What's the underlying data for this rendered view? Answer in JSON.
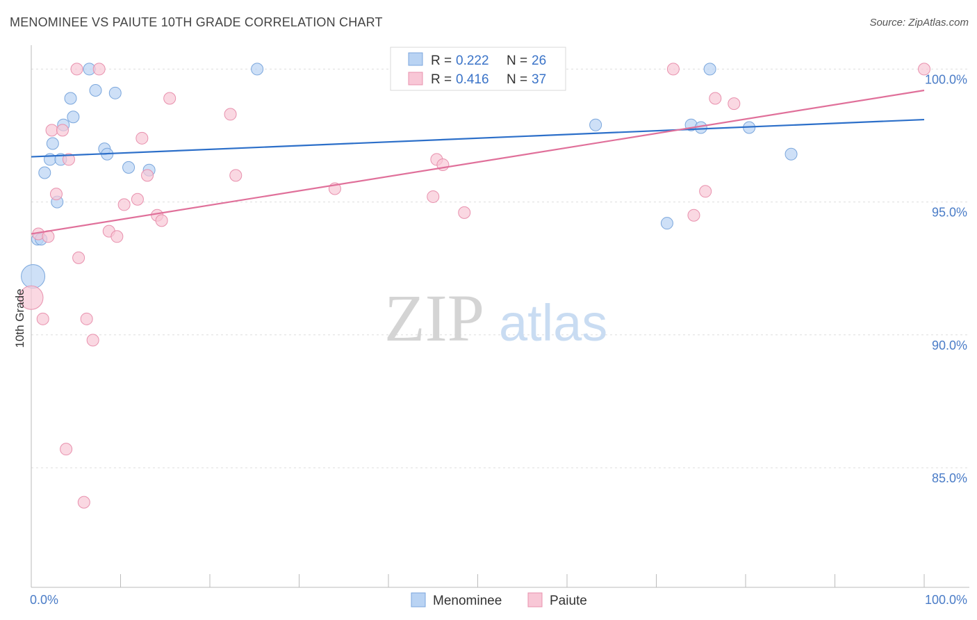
{
  "title": "MENOMINEE VS PAIUTE 10TH GRADE CORRELATION CHART",
  "source": "Source: ZipAtlas.com",
  "watermark": {
    "zip": "ZIP",
    "atlas": "atlas"
  },
  "colors": {
    "menominee_fill": "#b9d3f3",
    "menominee_stroke": "#7aa6dc",
    "menominee_line": "#2c6fc9",
    "paiute_fill": "#f8c7d6",
    "paiute_stroke": "#e890ad",
    "paiute_line": "#e0709a",
    "tick_label": "#4a7cc7",
    "grid": "#dddddd"
  },
  "legend": {
    "rows": [
      {
        "r_label": "R =",
        "r_value": "0.222",
        "n_label": "N =",
        "n_value": "26"
      },
      {
        "r_label": "R =",
        "r_value": "0.416",
        "n_label": "N =",
        "n_value": "37"
      }
    ]
  },
  "chart_data": {
    "type": "scatter",
    "title": "MENOMINEE VS PAIUTE 10TH GRADE CORRELATION CHART",
    "xlabel": "",
    "ylabel": "10th Grade",
    "xlim": [
      0,
      100
    ],
    "ylim": [
      80.5,
      100.9
    ],
    "x_tick_labels": [
      "0.0%",
      "100.0%"
    ],
    "y_ticks": [
      85,
      90,
      95,
      100
    ],
    "y_tick_labels": [
      "85.0%",
      "90.0%",
      "95.0%",
      "100.0%"
    ],
    "grid": true,
    "legend_placement": "top-center and bottom",
    "series": [
      {
        "name": "Menominee",
        "trend": {
          "x": [
            0,
            100
          ],
          "y": [
            96.7,
            98.1
          ]
        },
        "points": [
          {
            "x": 0.2,
            "y": 92.2,
            "s": 2
          },
          {
            "x": 0.7,
            "y": 93.6,
            "s": 1
          },
          {
            "x": 1.1,
            "y": 93.6,
            "s": 1
          },
          {
            "x": 1.5,
            "y": 96.1,
            "s": 1
          },
          {
            "x": 2.1,
            "y": 96.6,
            "s": 1
          },
          {
            "x": 2.4,
            "y": 97.2,
            "s": 1
          },
          {
            "x": 2.9,
            "y": 95.0,
            "s": 1
          },
          {
            "x": 3.3,
            "y": 96.6,
            "s": 1
          },
          {
            "x": 3.6,
            "y": 97.9,
            "s": 1
          },
          {
            "x": 4.4,
            "y": 98.9,
            "s": 1
          },
          {
            "x": 4.7,
            "y": 98.2,
            "s": 1
          },
          {
            "x": 6.5,
            "y": 100.0,
            "s": 1
          },
          {
            "x": 7.2,
            "y": 99.2,
            "s": 1
          },
          {
            "x": 8.2,
            "y": 97.0,
            "s": 1
          },
          {
            "x": 8.5,
            "y": 96.8,
            "s": 1
          },
          {
            "x": 9.4,
            "y": 99.1,
            "s": 1
          },
          {
            "x": 10.9,
            "y": 96.3,
            "s": 1
          },
          {
            "x": 13.2,
            "y": 96.2,
            "s": 1
          },
          {
            "x": 25.3,
            "y": 100.0,
            "s": 1
          },
          {
            "x": 63.2,
            "y": 97.9,
            "s": 1
          },
          {
            "x": 71.2,
            "y": 94.2,
            "s": 1
          },
          {
            "x": 73.9,
            "y": 97.9,
            "s": 1
          },
          {
            "x": 75.0,
            "y": 97.8,
            "s": 1
          },
          {
            "x": 76.0,
            "y": 100.0,
            "s": 1
          },
          {
            "x": 80.4,
            "y": 97.8,
            "s": 1
          },
          {
            "x": 85.1,
            "y": 96.8,
            "s": 1
          }
        ]
      },
      {
        "name": "Paiute",
        "trend": {
          "x": [
            0,
            100
          ],
          "y": [
            93.8,
            99.2
          ]
        },
        "points": [
          {
            "x": 0.0,
            "y": 91.4,
            "s": 2
          },
          {
            "x": 0.8,
            "y": 93.8,
            "s": 1
          },
          {
            "x": 1.3,
            "y": 90.6,
            "s": 1
          },
          {
            "x": 1.9,
            "y": 93.7,
            "s": 1
          },
          {
            "x": 2.3,
            "y": 97.7,
            "s": 1
          },
          {
            "x": 2.8,
            "y": 95.3,
            "s": 1
          },
          {
            "x": 3.5,
            "y": 97.7,
            "s": 1
          },
          {
            "x": 3.9,
            "y": 85.7,
            "s": 1
          },
          {
            "x": 4.2,
            "y": 96.6,
            "s": 1
          },
          {
            "x": 5.1,
            "y": 100.0,
            "s": 1
          },
          {
            "x": 5.3,
            "y": 92.9,
            "s": 1
          },
          {
            "x": 5.9,
            "y": 83.7,
            "s": 1
          },
          {
            "x": 6.2,
            "y": 90.6,
            "s": 1
          },
          {
            "x": 6.9,
            "y": 89.8,
            "s": 1
          },
          {
            "x": 7.6,
            "y": 100.0,
            "s": 1
          },
          {
            "x": 8.7,
            "y": 93.9,
            "s": 1
          },
          {
            "x": 9.6,
            "y": 93.7,
            "s": 1
          },
          {
            "x": 10.4,
            "y": 94.9,
            "s": 1
          },
          {
            "x": 11.9,
            "y": 95.1,
            "s": 1
          },
          {
            "x": 12.4,
            "y": 97.4,
            "s": 1
          },
          {
            "x": 13.0,
            "y": 96.0,
            "s": 1
          },
          {
            "x": 14.1,
            "y": 94.5,
            "s": 1
          },
          {
            "x": 14.6,
            "y": 94.3,
            "s": 1
          },
          {
            "x": 15.5,
            "y": 98.9,
            "s": 1
          },
          {
            "x": 22.3,
            "y": 98.3,
            "s": 1
          },
          {
            "x": 22.9,
            "y": 96.0,
            "s": 1
          },
          {
            "x": 34.0,
            "y": 95.5,
            "s": 1
          },
          {
            "x": 45.0,
            "y": 95.2,
            "s": 1
          },
          {
            "x": 45.4,
            "y": 96.6,
            "s": 1
          },
          {
            "x": 46.1,
            "y": 96.4,
            "s": 1
          },
          {
            "x": 48.5,
            "y": 94.6,
            "s": 1
          },
          {
            "x": 71.9,
            "y": 100.0,
            "s": 1
          },
          {
            "x": 74.2,
            "y": 94.5,
            "s": 1
          },
          {
            "x": 75.5,
            "y": 95.4,
            "s": 1
          },
          {
            "x": 76.6,
            "y": 98.9,
            "s": 1
          },
          {
            "x": 78.7,
            "y": 98.7,
            "s": 1
          },
          {
            "x": 100.0,
            "y": 100.0,
            "s": 1
          }
        ]
      }
    ]
  }
}
